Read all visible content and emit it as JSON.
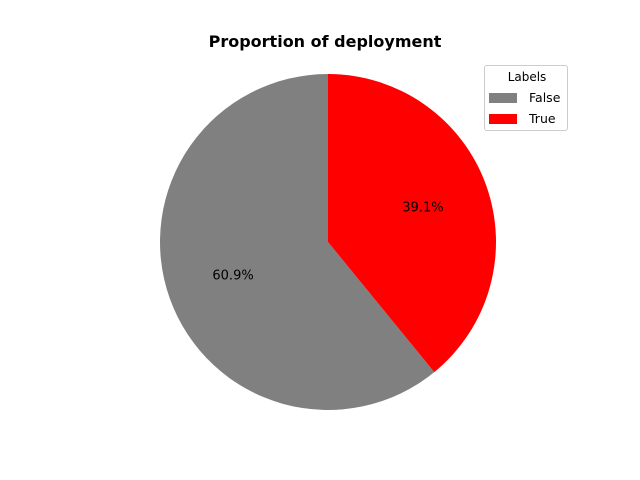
{
  "chart_data": {
    "type": "pie",
    "title": "Proportion of deployment",
    "slices": [
      {
        "label": "False",
        "value": 60.9,
        "pct_label": "60.9%",
        "color": "#808080"
      },
      {
        "label": "True",
        "value": 39.1,
        "pct_label": "39.1%",
        "color": "#ff0000"
      }
    ],
    "start_angle_deg": 90,
    "direction": "counterclockwise",
    "legend": {
      "title": "Labels",
      "placement": "top-right"
    }
  }
}
